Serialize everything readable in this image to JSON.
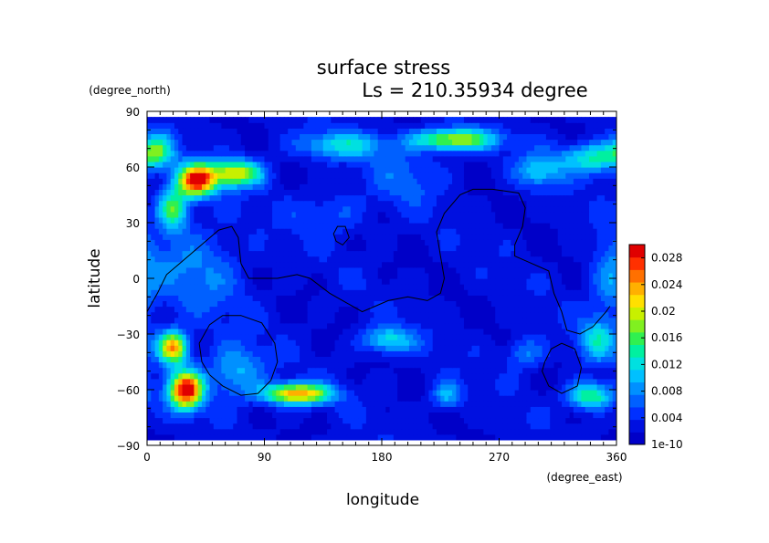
{
  "chart_data": {
    "type": "heatmap",
    "title": "surface stress",
    "subtitle": "Ls = 210.35934 degree",
    "xlabel": "longitude",
    "ylabel": "latitude",
    "x_units": "(degree_east)",
    "y_units": "(degree_north)",
    "xlim": [
      0,
      360
    ],
    "ylim": [
      -90,
      90
    ],
    "x_ticks": [
      0,
      90,
      180,
      270,
      360
    ],
    "y_ticks": [
      90,
      60,
      30,
      0,
      -30,
      -60,
      -90
    ],
    "x_tick_labels": [
      "0",
      "90",
      "180",
      "270",
      "360"
    ],
    "y_tick_labels": [
      "90",
      "60",
      "30",
      "0",
      "−30",
      "−60",
      "−90"
    ],
    "data_lat_range": [
      -87,
      87
    ],
    "colorbar": {
      "tick_labels": [
        "0.028",
        "0.024",
        "0.02",
        "0.016",
        "0.012",
        "0.008",
        "0.004",
        "1e-10"
      ],
      "tick_values": [
        0.028,
        0.024,
        0.02,
        0.016,
        0.012,
        0.008,
        0.004,
        0.0
      ],
      "range": [
        0,
        0.03
      ],
      "colors": [
        "#0000c8",
        "#0010e0",
        "#0030ff",
        "#0060ff",
        "#0090ff",
        "#00c0ff",
        "#00e0e0",
        "#00f0a0",
        "#30f050",
        "#80f020",
        "#c8f000",
        "#ffe000",
        "#ffb000",
        "#ff7000",
        "#ff3000",
        "#e00000"
      ]
    },
    "field": {
      "description_of_units": "stress",
      "background": 0.0025,
      "features": [
        {
          "lon": 38,
          "lat": 53,
          "amp": 0.027,
          "slon": 10,
          "slat": 6
        },
        {
          "lon": 68,
          "lat": 57,
          "amp": 0.018,
          "slon": 14,
          "slat": 5
        },
        {
          "lon": 20,
          "lat": 38,
          "amp": 0.014,
          "slon": 8,
          "slat": 8
        },
        {
          "lon": 8,
          "lat": 70,
          "amp": 0.01,
          "slon": 8,
          "slat": 6
        },
        {
          "lon": 235,
          "lat": 75,
          "amp": 0.017,
          "slon": 22,
          "slat": 4
        },
        {
          "lon": 150,
          "lat": 72,
          "amp": 0.009,
          "slon": 25,
          "slat": 5
        },
        {
          "lon": 345,
          "lat": 65,
          "amp": 0.012,
          "slon": 20,
          "slat": 6
        },
        {
          "lon": 300,
          "lat": 58,
          "amp": 0.008,
          "slon": 12,
          "slat": 6
        },
        {
          "lon": 20,
          "lat": -37,
          "amp": 0.022,
          "slon": 8,
          "slat": 6
        },
        {
          "lon": 30,
          "lat": -60,
          "amp": 0.028,
          "slon": 9,
          "slat": 7
        },
        {
          "lon": 115,
          "lat": -62,
          "amp": 0.022,
          "slon": 18,
          "slat": 4
        },
        {
          "lon": 68,
          "lat": -50,
          "amp": 0.008,
          "slon": 15,
          "slat": 10
        },
        {
          "lon": 185,
          "lat": -33,
          "amp": 0.01,
          "slon": 14,
          "slat": 5
        },
        {
          "lon": 230,
          "lat": -63,
          "amp": 0.008,
          "slon": 8,
          "slat": 5
        },
        {
          "lon": 340,
          "lat": -63,
          "amp": 0.014,
          "slon": 12,
          "slat": 5
        },
        {
          "lon": 345,
          "lat": -33,
          "amp": 0.009,
          "slon": 10,
          "slat": 8
        },
        {
          "lon": 290,
          "lat": -40,
          "amp": 0.006,
          "slon": 10,
          "slat": 6
        },
        {
          "lon": 40,
          "lat": 5,
          "amp": 0.005,
          "slon": 25,
          "slat": 18
        },
        {
          "lon": 355,
          "lat": 0,
          "amp": 0.006,
          "slon": 10,
          "slat": 15
        },
        {
          "lon": 140,
          "lat": 35,
          "amp": 0.004,
          "slon": 20,
          "slat": 8
        },
        {
          "lon": 200,
          "lat": 55,
          "amp": 0.004,
          "slon": 20,
          "slat": 10
        }
      ]
    },
    "topography_contours": [
      [
        [
          0,
          -18
        ],
        [
          8,
          -8
        ],
        [
          15,
          2
        ],
        [
          25,
          8
        ],
        [
          35,
          14
        ],
        [
          45,
          20
        ],
        [
          55,
          26
        ],
        [
          65,
          28
        ],
        [
          70,
          22
        ],
        [
          72,
          8
        ],
        [
          78,
          0
        ],
        [
          100,
          0
        ],
        [
          115,
          2
        ],
        [
          125,
          0
        ],
        [
          140,
          -8
        ],
        [
          150,
          -12
        ],
        [
          165,
          -18
        ],
        [
          175,
          -15
        ],
        [
          185,
          -12
        ],
        [
          200,
          -10
        ],
        [
          215,
          -12
        ],
        [
          225,
          -8
        ],
        [
          228,
          0
        ],
        [
          225,
          12
        ],
        [
          222,
          25
        ],
        [
          228,
          35
        ],
        [
          240,
          45
        ],
        [
          250,
          48
        ],
        [
          265,
          48
        ],
        [
          285,
          46
        ],
        [
          290,
          38
        ],
        [
          288,
          28
        ],
        [
          282,
          18
        ],
        [
          282,
          12
        ],
        [
          295,
          8
        ],
        [
          308,
          4
        ],
        [
          312,
          -8
        ],
        [
          318,
          -18
        ],
        [
          322,
          -28
        ],
        [
          332,
          -30
        ],
        [
          342,
          -26
        ],
        [
          352,
          -18
        ],
        [
          355,
          -15
        ]
      ],
      [
        [
          145,
          20
        ],
        [
          150,
          18
        ],
        [
          155,
          22
        ],
        [
          152,
          28
        ],
        [
          146,
          28
        ],
        [
          143,
          24
        ],
        [
          145,
          20
        ]
      ],
      [
        [
          40,
          -35
        ],
        [
          48,
          -25
        ],
        [
          58,
          -20
        ],
        [
          72,
          -20
        ],
        [
          88,
          -24
        ],
        [
          98,
          -35
        ],
        [
          100,
          -45
        ],
        [
          95,
          -55
        ],
        [
          85,
          -62
        ],
        [
          72,
          -63
        ],
        [
          58,
          -58
        ],
        [
          48,
          -52
        ],
        [
          42,
          -45
        ],
        [
          40,
          -35
        ]
      ],
      [
        [
          305,
          -45
        ],
        [
          310,
          -38
        ],
        [
          318,
          -35
        ],
        [
          328,
          -38
        ],
        [
          333,
          -48
        ],
        [
          330,
          -58
        ],
        [
          318,
          -62
        ],
        [
          308,
          -58
        ],
        [
          303,
          -50
        ],
        [
          305,
          -45
        ]
      ]
    ]
  }
}
